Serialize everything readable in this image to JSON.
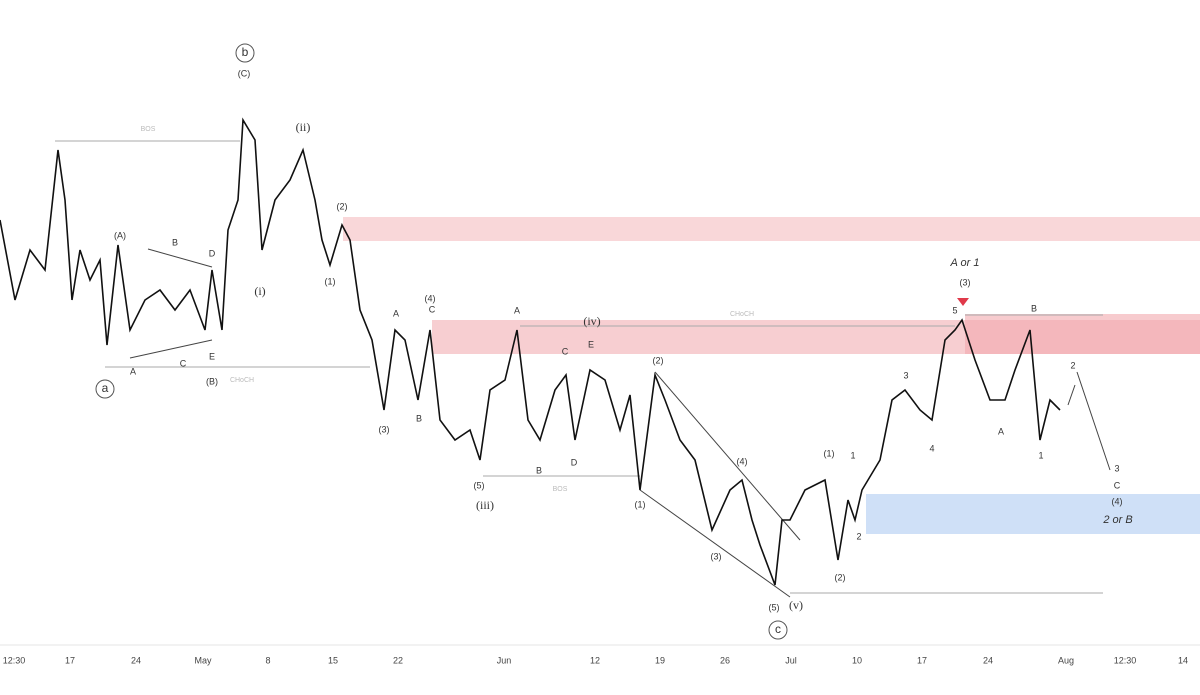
{
  "x_axis_labels": [
    "12:30",
    "17",
    "24",
    "May",
    "8",
    "15",
    "22",
    "Jun",
    "12",
    "19",
    "26",
    "Jul",
    "10",
    "17",
    "24",
    "Aug",
    "12:30",
    "14"
  ],
  "wave_labels": [
    "b",
    "(C)",
    "(ii)",
    "(i)",
    "(2)",
    "(1)",
    "(A)",
    "B",
    "D",
    "A",
    "C",
    "E",
    "(B)",
    "a",
    "(4)",
    "C",
    "A",
    "B",
    "(3)",
    "A",
    "(iv)",
    "C",
    "E",
    "B",
    "D",
    "(5)",
    "(iii)",
    "(2)",
    "(1)",
    "(4)",
    "(3)",
    "(5)",
    "(v)",
    "c",
    "(1)",
    "1",
    "2",
    "(2)",
    "3",
    "4",
    "A or 1",
    "(3)",
    "5",
    "B",
    "A",
    "1",
    "2",
    "3",
    "C",
    "(4)",
    "2 or B"
  ],
  "zone_labels": [
    "BOS",
    "CHoCH",
    "CHoCH",
    "BOS"
  ]
}
